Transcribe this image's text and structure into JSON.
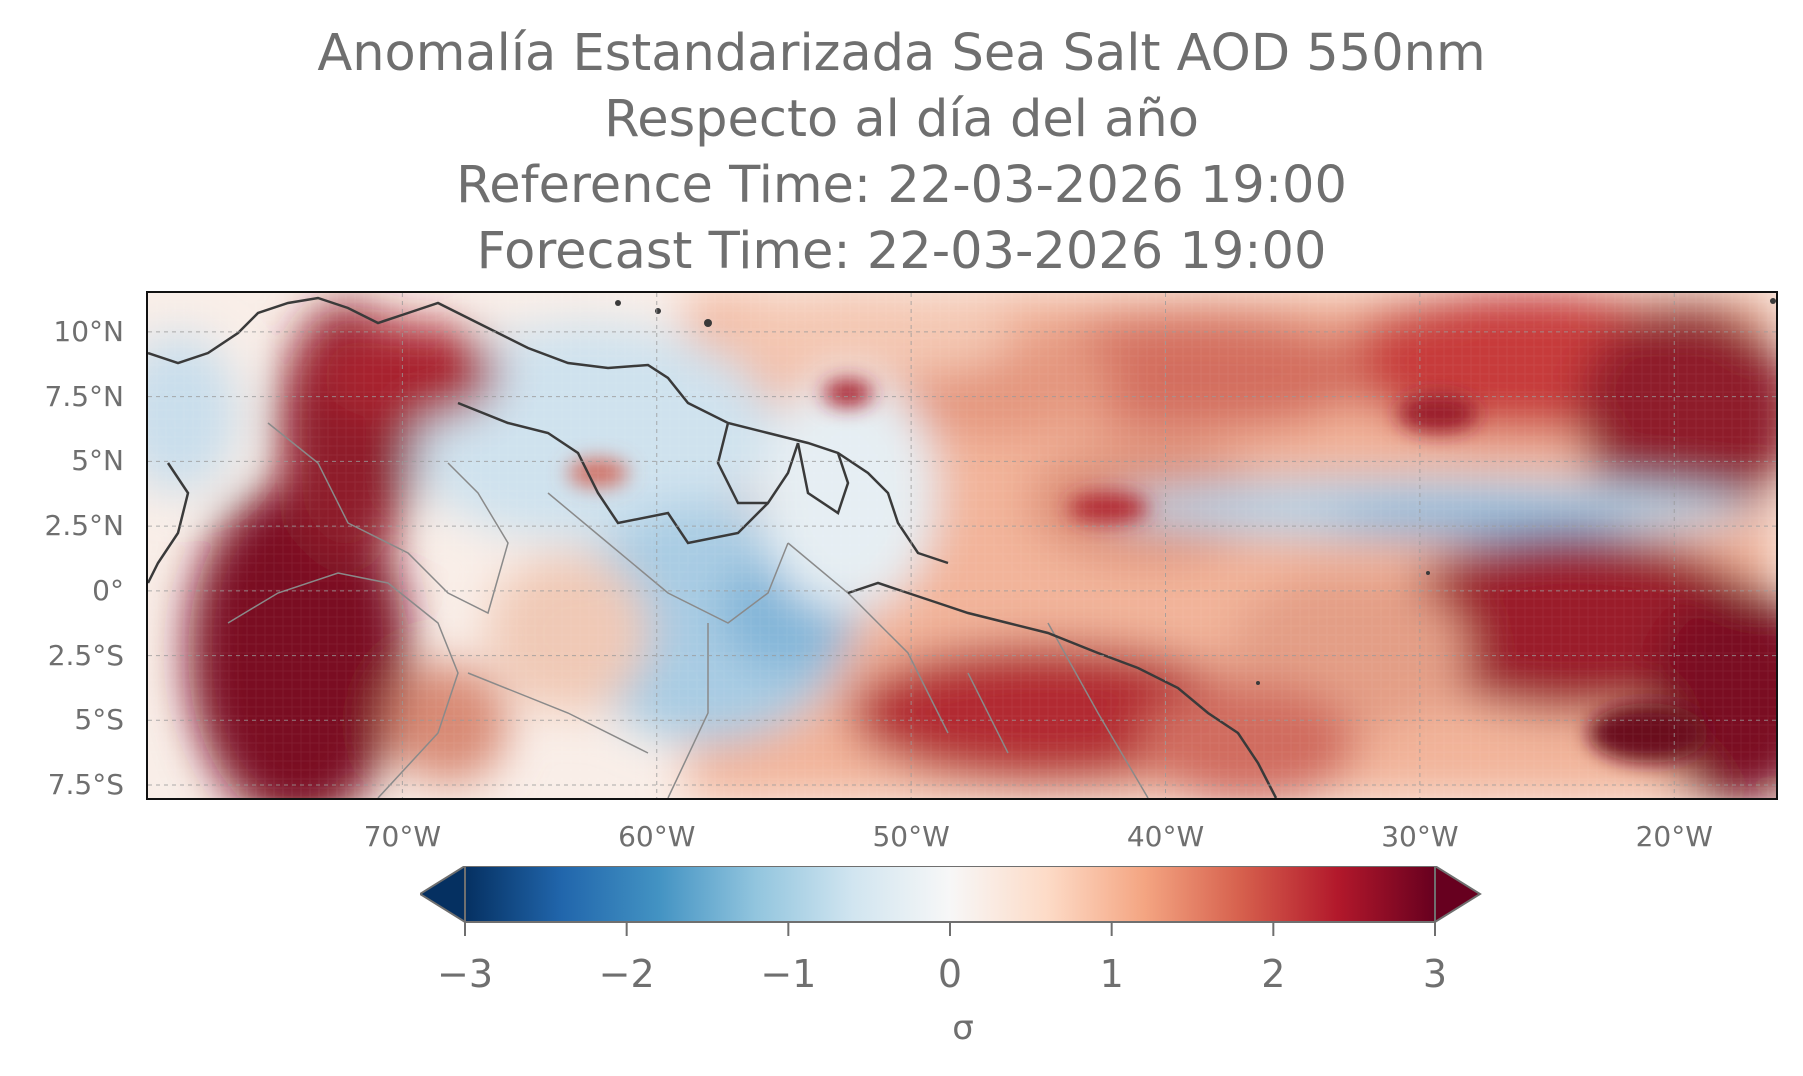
{
  "title": {
    "line1": "Anomalía Estandarizada Sea Salt AOD 550nm",
    "line2": "Respecto al día del año",
    "line3": "Reference Time: 22-03-2026 19:00",
    "line4": "Forecast Time: 22-03-2026 19:00"
  },
  "map": {
    "lon_range": [
      -80,
      -16
    ],
    "lat_range": [
      -8,
      11.5
    ],
    "lat_ticks": [
      {
        "value": 10,
        "label": "10°N"
      },
      {
        "value": 7.5,
        "label": "7.5°N"
      },
      {
        "value": 5,
        "label": "5°N"
      },
      {
        "value": 2.5,
        "label": "2.5°N"
      },
      {
        "value": 0,
        "label": "0°"
      },
      {
        "value": -2.5,
        "label": "2.5°S"
      },
      {
        "value": -5,
        "label": "5°S"
      },
      {
        "value": -7.5,
        "label": "7.5°S"
      }
    ],
    "lon_ticks": [
      {
        "value": -70,
        "label": "70°W"
      },
      {
        "value": -60,
        "label": "60°W"
      },
      {
        "value": -50,
        "label": "50°W"
      },
      {
        "value": -40,
        "label": "40°W"
      },
      {
        "value": -30,
        "label": "30°W"
      },
      {
        "value": -20,
        "label": "20°W"
      }
    ],
    "gridlines": true,
    "colormap": "RdBu_r",
    "value_range": [
      -3,
      3
    ]
  },
  "colorbar": {
    "ticks": [
      {
        "value": -3,
        "label": "−3"
      },
      {
        "value": -2,
        "label": "−2"
      },
      {
        "value": -1,
        "label": "−1"
      },
      {
        "value": 0,
        "label": "0"
      },
      {
        "value": 1,
        "label": "1"
      },
      {
        "value": 2,
        "label": "2"
      },
      {
        "value": 3,
        "label": "3"
      }
    ],
    "unit": "σ",
    "extend": "both"
  },
  "colors": {
    "text": "#6f6f6f",
    "coastline": "#3a3a3a",
    "border": "#8a8a8a"
  }
}
